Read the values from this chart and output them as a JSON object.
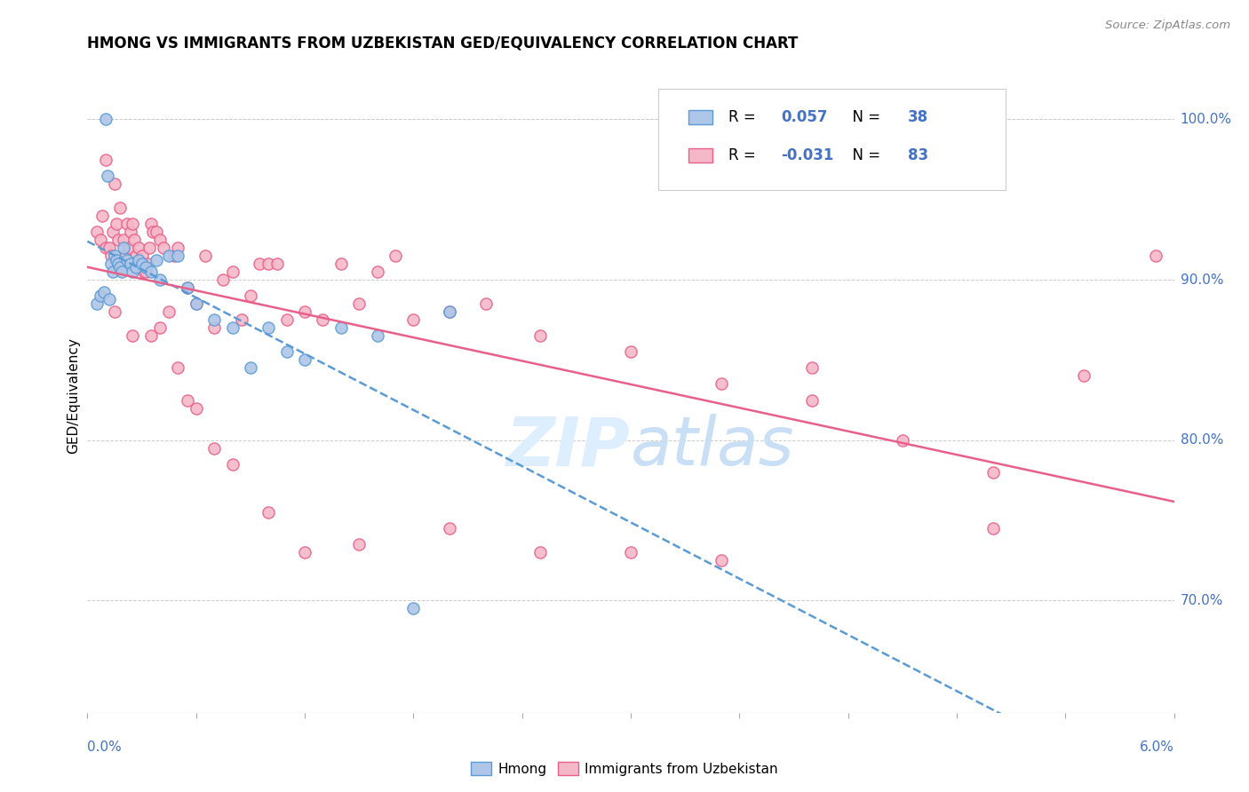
{
  "title": "HMONG VS IMMIGRANTS FROM UZBEKISTAN GED/EQUIVALENCY CORRELATION CHART",
  "source": "Source: ZipAtlas.com",
  "ylabel": "GED/Equivalency",
  "xmin": 0.0,
  "xmax": 6.0,
  "ymin": 63.0,
  "ymax": 102.5,
  "right_yticks": [
    70.0,
    80.0,
    90.0,
    100.0
  ],
  "legend1_r": "0.057",
  "legend1_n": "38",
  "legend2_r": "-0.031",
  "legend2_n": "83",
  "hmong_fill": "#aec6e8",
  "hmong_edge": "#5b9bd5",
  "uzbek_fill": "#f5b8c8",
  "uzbek_edge": "#e8608a",
  "hmong_line": "#5b9bd5",
  "uzbek_line": "#e8608a",
  "blue_text": "#4472c4",
  "watermark_color": "#ddeeff",
  "hmong_x": [
    0.05,
    0.07,
    0.09,
    0.1,
    0.11,
    0.12,
    0.13,
    0.14,
    0.15,
    0.16,
    0.17,
    0.18,
    0.19,
    0.2,
    0.22,
    0.24,
    0.25,
    0.27,
    0.28,
    0.3,
    0.32,
    0.35,
    0.38,
    0.4,
    0.45,
    0.5,
    0.55,
    0.6,
    0.7,
    0.8,
    0.9,
    1.0,
    1.1,
    1.2,
    1.4,
    1.6,
    1.8,
    2.0
  ],
  "hmong_y": [
    88.5,
    89.0,
    89.2,
    100.0,
    96.5,
    88.8,
    91.0,
    90.5,
    91.5,
    91.2,
    91.0,
    90.8,
    90.5,
    92.0,
    91.2,
    91.0,
    90.5,
    90.8,
    91.2,
    91.0,
    90.8,
    90.5,
    91.2,
    90.0,
    91.5,
    91.5,
    89.5,
    88.5,
    87.5,
    87.0,
    84.5,
    87.0,
    85.5,
    85.0,
    87.0,
    86.5,
    69.5,
    88.0
  ],
  "uzbek_x": [
    0.05,
    0.07,
    0.08,
    0.1,
    0.1,
    0.12,
    0.13,
    0.14,
    0.15,
    0.16,
    0.17,
    0.18,
    0.19,
    0.2,
    0.21,
    0.22,
    0.23,
    0.24,
    0.25,
    0.26,
    0.27,
    0.28,
    0.29,
    0.3,
    0.31,
    0.32,
    0.33,
    0.34,
    0.35,
    0.36,
    0.38,
    0.4,
    0.42,
    0.45,
    0.48,
    0.5,
    0.55,
    0.6,
    0.65,
    0.7,
    0.75,
    0.8,
    0.85,
    0.9,
    0.95,
    1.0,
    1.05,
    1.1,
    1.2,
    1.3,
    1.4,
    1.5,
    1.6,
    1.7,
    1.8,
    2.0,
    2.2,
    2.5,
    3.0,
    3.5,
    4.0,
    4.5,
    5.0,
    5.5,
    5.9,
    0.15,
    0.25,
    0.35,
    0.4,
    0.5,
    0.55,
    0.6,
    0.7,
    0.8,
    1.0,
    1.2,
    1.5,
    2.0,
    2.5,
    3.0,
    3.5,
    4.0,
    5.0
  ],
  "uzbek_y": [
    93.0,
    92.5,
    94.0,
    92.0,
    97.5,
    92.0,
    91.5,
    93.0,
    96.0,
    93.5,
    92.5,
    94.5,
    91.0,
    92.5,
    91.5,
    93.5,
    92.0,
    93.0,
    93.5,
    92.5,
    91.5,
    92.0,
    91.0,
    91.5,
    90.5,
    90.5,
    91.0,
    92.0,
    93.5,
    93.0,
    93.0,
    92.5,
    92.0,
    88.0,
    91.5,
    92.0,
    89.5,
    88.5,
    91.5,
    87.0,
    90.0,
    90.5,
    87.5,
    89.0,
    91.0,
    91.0,
    91.0,
    87.5,
    88.0,
    87.5,
    91.0,
    88.5,
    90.5,
    91.5,
    87.5,
    88.0,
    88.5,
    86.5,
    85.5,
    83.5,
    82.5,
    80.0,
    78.0,
    84.0,
    91.5,
    88.0,
    86.5,
    86.5,
    87.0,
    84.5,
    82.5,
    82.0,
    79.5,
    78.5,
    75.5,
    73.0,
    73.5,
    74.5,
    73.0,
    73.0,
    72.5,
    84.5,
    74.5
  ]
}
